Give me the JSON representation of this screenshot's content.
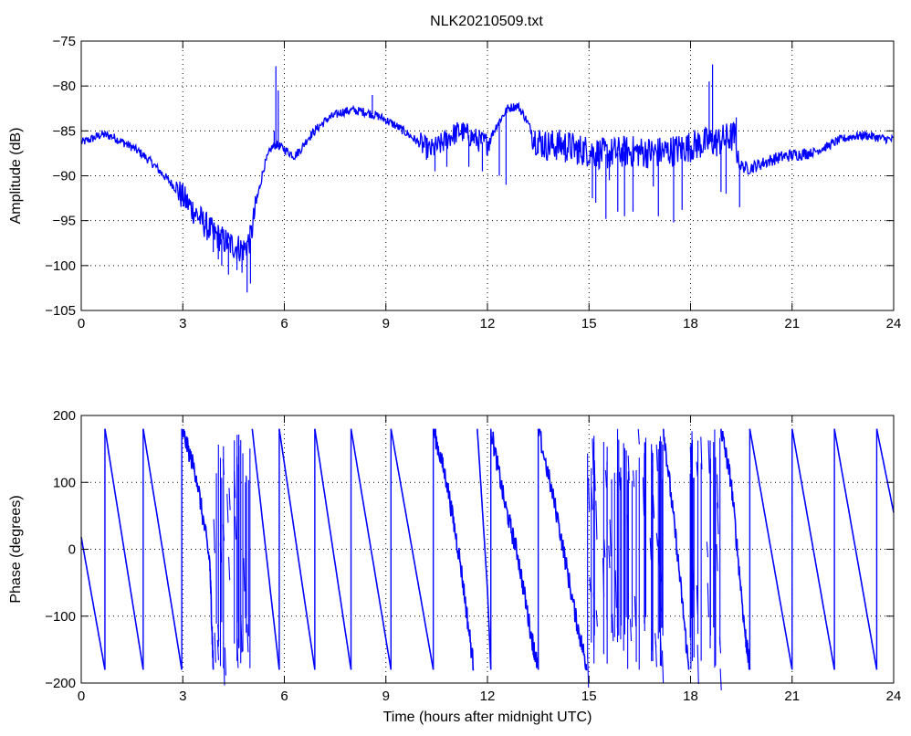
{
  "figure": {
    "title": "NLK20210509.txt",
    "background": "#ffffff",
    "line_color": "#0000ff"
  },
  "chart_data": [
    {
      "type": "line",
      "title": "NLK20210509.txt",
      "xlabel": "",
      "ylabel": "Amplitude (dB)",
      "xlim": [
        0,
        24
      ],
      "ylim": [
        -105,
        -75
      ],
      "xticks": [
        0,
        3,
        6,
        9,
        12,
        15,
        18,
        21,
        24
      ],
      "yticks": [
        -105,
        -100,
        -95,
        -90,
        -85,
        -80,
        -75
      ],
      "xtick_labels": [
        "0",
        "3",
        "6",
        "9",
        "12",
        "15",
        "18",
        "21",
        "24"
      ],
      "ytick_labels": [
        "−105",
        "−100",
        "−95",
        "−90",
        "−85",
        "−80",
        "−75"
      ],
      "grid": true,
      "series": [
        {
          "color": "#0000ff",
          "points": [
            [
              0.0,
              -86.3
            ],
            [
              0.3,
              -85.9
            ],
            [
              0.6,
              -85.4
            ],
            [
              0.9,
              -85.6
            ],
            [
              1.2,
              -86.2
            ],
            [
              1.5,
              -86.8
            ],
            [
              1.8,
              -87.6
            ],
            [
              2.1,
              -88.6
            ],
            [
              2.4,
              -89.8
            ],
            [
              2.7,
              -91.0
            ],
            [
              3.0,
              -92.4
            ],
            [
              3.3,
              -93.8
            ],
            [
              3.6,
              -95.2
            ],
            [
              3.9,
              -96.4
            ],
            [
              4.2,
              -97.2
            ],
            [
              4.5,
              -97.8
            ],
            [
              4.8,
              -98.2
            ],
            [
              5.0,
              -97.0
            ],
            [
              5.2,
              -92.5
            ],
            [
              5.4,
              -89.0
            ],
            [
              5.6,
              -87.0
            ],
            [
              5.75,
              -86.5
            ],
            [
              5.9,
              -86.8
            ],
            [
              6.1,
              -87.3
            ],
            [
              6.3,
              -87.8
            ],
            [
              6.5,
              -87.0
            ],
            [
              6.7,
              -85.8
            ],
            [
              7.0,
              -84.6
            ],
            [
              7.3,
              -83.6
            ],
            [
              7.7,
              -82.9
            ],
            [
              8.0,
              -82.7
            ],
            [
              8.4,
              -82.9
            ],
            [
              8.8,
              -83.4
            ],
            [
              9.2,
              -84.2
            ],
            [
              9.6,
              -85.2
            ],
            [
              10.0,
              -86.4
            ],
            [
              10.3,
              -87.2
            ],
            [
              10.6,
              -86.6
            ],
            [
              10.9,
              -85.6
            ],
            [
              11.2,
              -85.0
            ],
            [
              11.5,
              -85.6
            ],
            [
              11.8,
              -86.2
            ],
            [
              12.0,
              -86.4
            ],
            [
              12.3,
              -84.2
            ],
            [
              12.6,
              -82.5
            ],
            [
              12.9,
              -82.2
            ],
            [
              13.1,
              -83.4
            ],
            [
              13.4,
              -85.8
            ],
            [
              13.7,
              -86.6
            ],
            [
              14.0,
              -86.6
            ],
            [
              14.3,
              -86.6
            ],
            [
              14.6,
              -87.0
            ],
            [
              14.9,
              -87.2
            ],
            [
              15.2,
              -87.4
            ],
            [
              15.5,
              -87.6
            ],
            [
              15.8,
              -87.4
            ],
            [
              16.1,
              -87.3
            ],
            [
              16.4,
              -87.3
            ],
            [
              16.7,
              -87.4
            ],
            [
              17.0,
              -87.4
            ],
            [
              17.3,
              -87.3
            ],
            [
              17.6,
              -87.1
            ],
            [
              17.9,
              -86.8
            ],
            [
              18.2,
              -86.5
            ],
            [
              18.5,
              -86.3
            ],
            [
              18.8,
              -86.2
            ],
            [
              19.1,
              -85.8
            ],
            [
              19.3,
              -85.6
            ],
            [
              19.45,
              -88.8
            ],
            [
              19.7,
              -89.2
            ],
            [
              20.0,
              -88.8
            ],
            [
              20.4,
              -88.2
            ],
            [
              20.8,
              -87.8
            ],
            [
              21.2,
              -87.6
            ],
            [
              21.6,
              -87.4
            ],
            [
              22.0,
              -86.8
            ],
            [
              22.4,
              -86.0
            ],
            [
              22.8,
              -85.6
            ],
            [
              23.2,
              -85.5
            ],
            [
              23.6,
              -85.8
            ],
            [
              24.0,
              -86.0
            ]
          ],
          "spikes": [
            [
              3.9,
              -98.5
            ],
            [
              4.05,
              -99.3
            ],
            [
              4.15,
              -100.0
            ],
            [
              4.35,
              -101.0
            ],
            [
              4.6,
              -100.5
            ],
            [
              4.75,
              -100.8
            ],
            [
              4.9,
              -103.0
            ],
            [
              5.0,
              -102.0
            ],
            [
              5.75,
              -77.8
            ],
            [
              5.82,
              -80.5
            ],
            [
              5.7,
              -85.0
            ],
            [
              8.6,
              -81.0
            ],
            [
              10.45,
              -89.5
            ],
            [
              10.8,
              -89.0
            ],
            [
              11.45,
              -89.0
            ],
            [
              11.85,
              -89.5
            ],
            [
              12.35,
              -90.0
            ],
            [
              12.55,
              -91.0
            ],
            [
              15.1,
              -92.5
            ],
            [
              15.2,
              -93.0
            ],
            [
              15.5,
              -94.8
            ],
            [
              15.85,
              -94.0
            ],
            [
              16.05,
              -94.5
            ],
            [
              16.3,
              -94.0
            ],
            [
              17.05,
              -94.5
            ],
            [
              17.5,
              -95.2
            ],
            [
              17.75,
              -93.8
            ],
            [
              18.55,
              -79.5
            ],
            [
              18.65,
              -77.6
            ],
            [
              18.9,
              -91.8
            ],
            [
              19.05,
              -92.0
            ],
            [
              19.35,
              -83.5
            ],
            [
              19.45,
              -93.5
            ],
            [
              13.5,
              -87.5
            ],
            [
              14.3,
              -88.5
            ],
            [
              14.7,
              -88.6
            ],
            [
              15.6,
              -90.5
            ],
            [
              16.9,
              -91.2
            ]
          ]
        }
      ]
    },
    {
      "type": "line",
      "title": "",
      "xlabel": "Time (hours after midnight UTC)",
      "ylabel": "Phase (degrees)",
      "xlim": [
        0,
        24
      ],
      "ylim": [
        -200,
        200
      ],
      "xticks": [
        0,
        3,
        6,
        9,
        12,
        15,
        18,
        21,
        24
      ],
      "yticks": [
        -200,
        -100,
        0,
        100,
        200
      ],
      "xtick_labels": [
        "0",
        "3",
        "6",
        "9",
        "12",
        "15",
        "18",
        "21",
        "24"
      ],
      "ytick_labels": [
        "−200",
        "−100",
        "0",
        "100",
        "200"
      ],
      "grid": true,
      "series": [
        {
          "color": "#0000ff",
          "segments": [
            [
              [
                0.0,
                18
              ],
              [
                0.7,
                -180
              ]
            ],
            [
              [
                0.7,
                180
              ],
              [
                1.83,
                -180
              ]
            ],
            [
              [
                1.83,
                180
              ],
              [
                2.97,
                -180
              ]
            ],
            [
              [
                2.97,
                180
              ],
              [
                3.4,
                110
              ],
              [
                3.8,
                -20
              ],
              [
                3.9,
                -180
              ]
            ],
            [
              [
                5.05,
                180
              ],
              [
                5.85,
                -180
              ]
            ],
            [
              [
                5.85,
                180
              ],
              [
                6.9,
                -180
              ]
            ],
            [
              [
                6.9,
                180
              ],
              [
                7.97,
                -180
              ]
            ],
            [
              [
                7.97,
                180
              ],
              [
                9.15,
                -180
              ]
            ],
            [
              [
                9.15,
                180
              ],
              [
                10.4,
                -180
              ]
            ],
            [
              [
                10.4,
                180
              ],
              [
                10.8,
                100
              ],
              [
                11.2,
                -20
              ],
              [
                11.6,
                -180
              ]
            ],
            [
              [
                11.7,
                180
              ],
              [
                12.0,
                -60
              ],
              [
                12.1,
                -180
              ]
            ],
            [
              [
                12.1,
                180
              ],
              [
                12.5,
                70
              ],
              [
                12.9,
                -10
              ],
              [
                13.3,
                -130
              ],
              [
                13.5,
                -180
              ]
            ],
            [
              [
                13.5,
                180
              ],
              [
                14.1,
                40
              ],
              [
                14.6,
                -100
              ],
              [
                14.95,
                -180
              ]
            ],
            [
              [
                17.2,
                180
              ],
              [
                17.6,
                0
              ],
              [
                17.95,
                -180
              ]
            ],
            [
              [
                18.9,
                180
              ],
              [
                19.2,
                100
              ],
              [
                19.6,
                -120
              ],
              [
                19.75,
                -180
              ]
            ],
            [
              [
                19.75,
                180
              ],
              [
                21.0,
                -180
              ]
            ],
            [
              [
                21.0,
                180
              ],
              [
                22.25,
                -180
              ]
            ],
            [
              [
                22.25,
                180
              ],
              [
                23.5,
                -180
              ]
            ],
            [
              [
                23.5,
                180
              ],
              [
                24.0,
                55
              ]
            ]
          ],
          "noisy_bands": [
            [
              3.9,
              5.05
            ],
            [
              14.95,
              17.2
            ],
            [
              17.95,
              18.9
            ]
          ]
        }
      ]
    }
  ]
}
